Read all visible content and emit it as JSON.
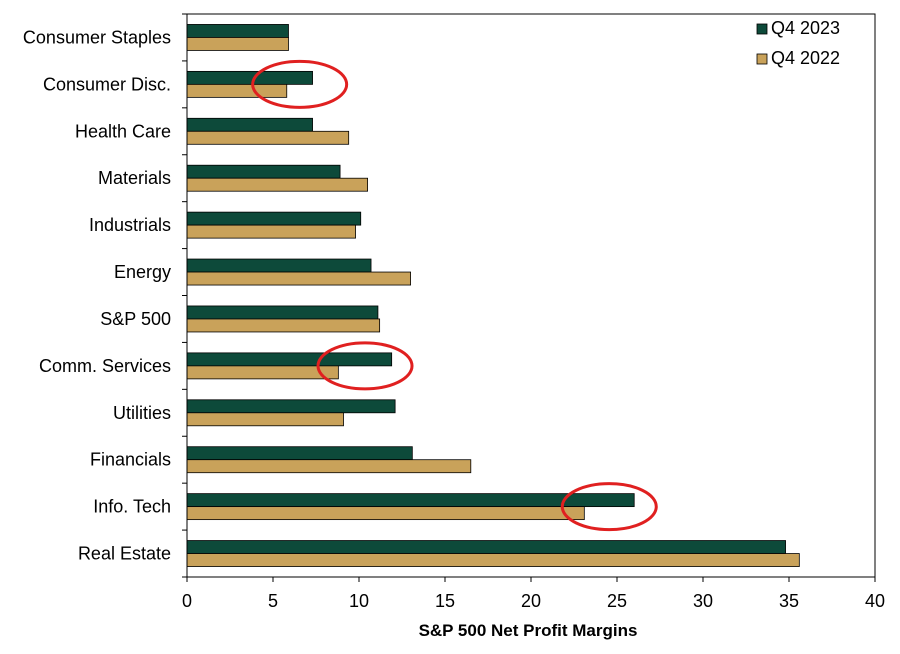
{
  "chart_data": {
    "type": "bar",
    "orientation": "horizontal",
    "xlabel": "S&P 500 Net Profit Margins",
    "xlim": [
      0,
      40
    ],
    "xticks": [
      0,
      5,
      10,
      15,
      20,
      25,
      30,
      35,
      40
    ],
    "categories": [
      "Consumer Staples",
      "Consumer Disc.",
      "Health Care",
      "Materials",
      "Industrials",
      "Energy",
      "S&P 500",
      "Comm. Services",
      "Utilities",
      "Financials",
      "Info. Tech",
      "Real Estate"
    ],
    "series": [
      {
        "name": "Q4 2023",
        "color": "#0d4a3a",
        "values": [
          5.9,
          7.3,
          7.3,
          8.9,
          10.1,
          10.7,
          11.1,
          11.9,
          12.1,
          13.1,
          26.0,
          34.8
        ]
      },
      {
        "name": "Q4 2022",
        "color": "#c9a25a",
        "values": [
          5.9,
          5.8,
          9.4,
          10.5,
          9.8,
          13.0,
          11.2,
          8.8,
          9.1,
          16.5,
          23.1,
          35.6
        ]
      }
    ],
    "legend_position": "top-right",
    "grid": false,
    "highlight_color": "#e02020",
    "highlighted_categories": [
      "Consumer Disc.",
      "Comm. Services",
      "Info. Tech"
    ]
  }
}
